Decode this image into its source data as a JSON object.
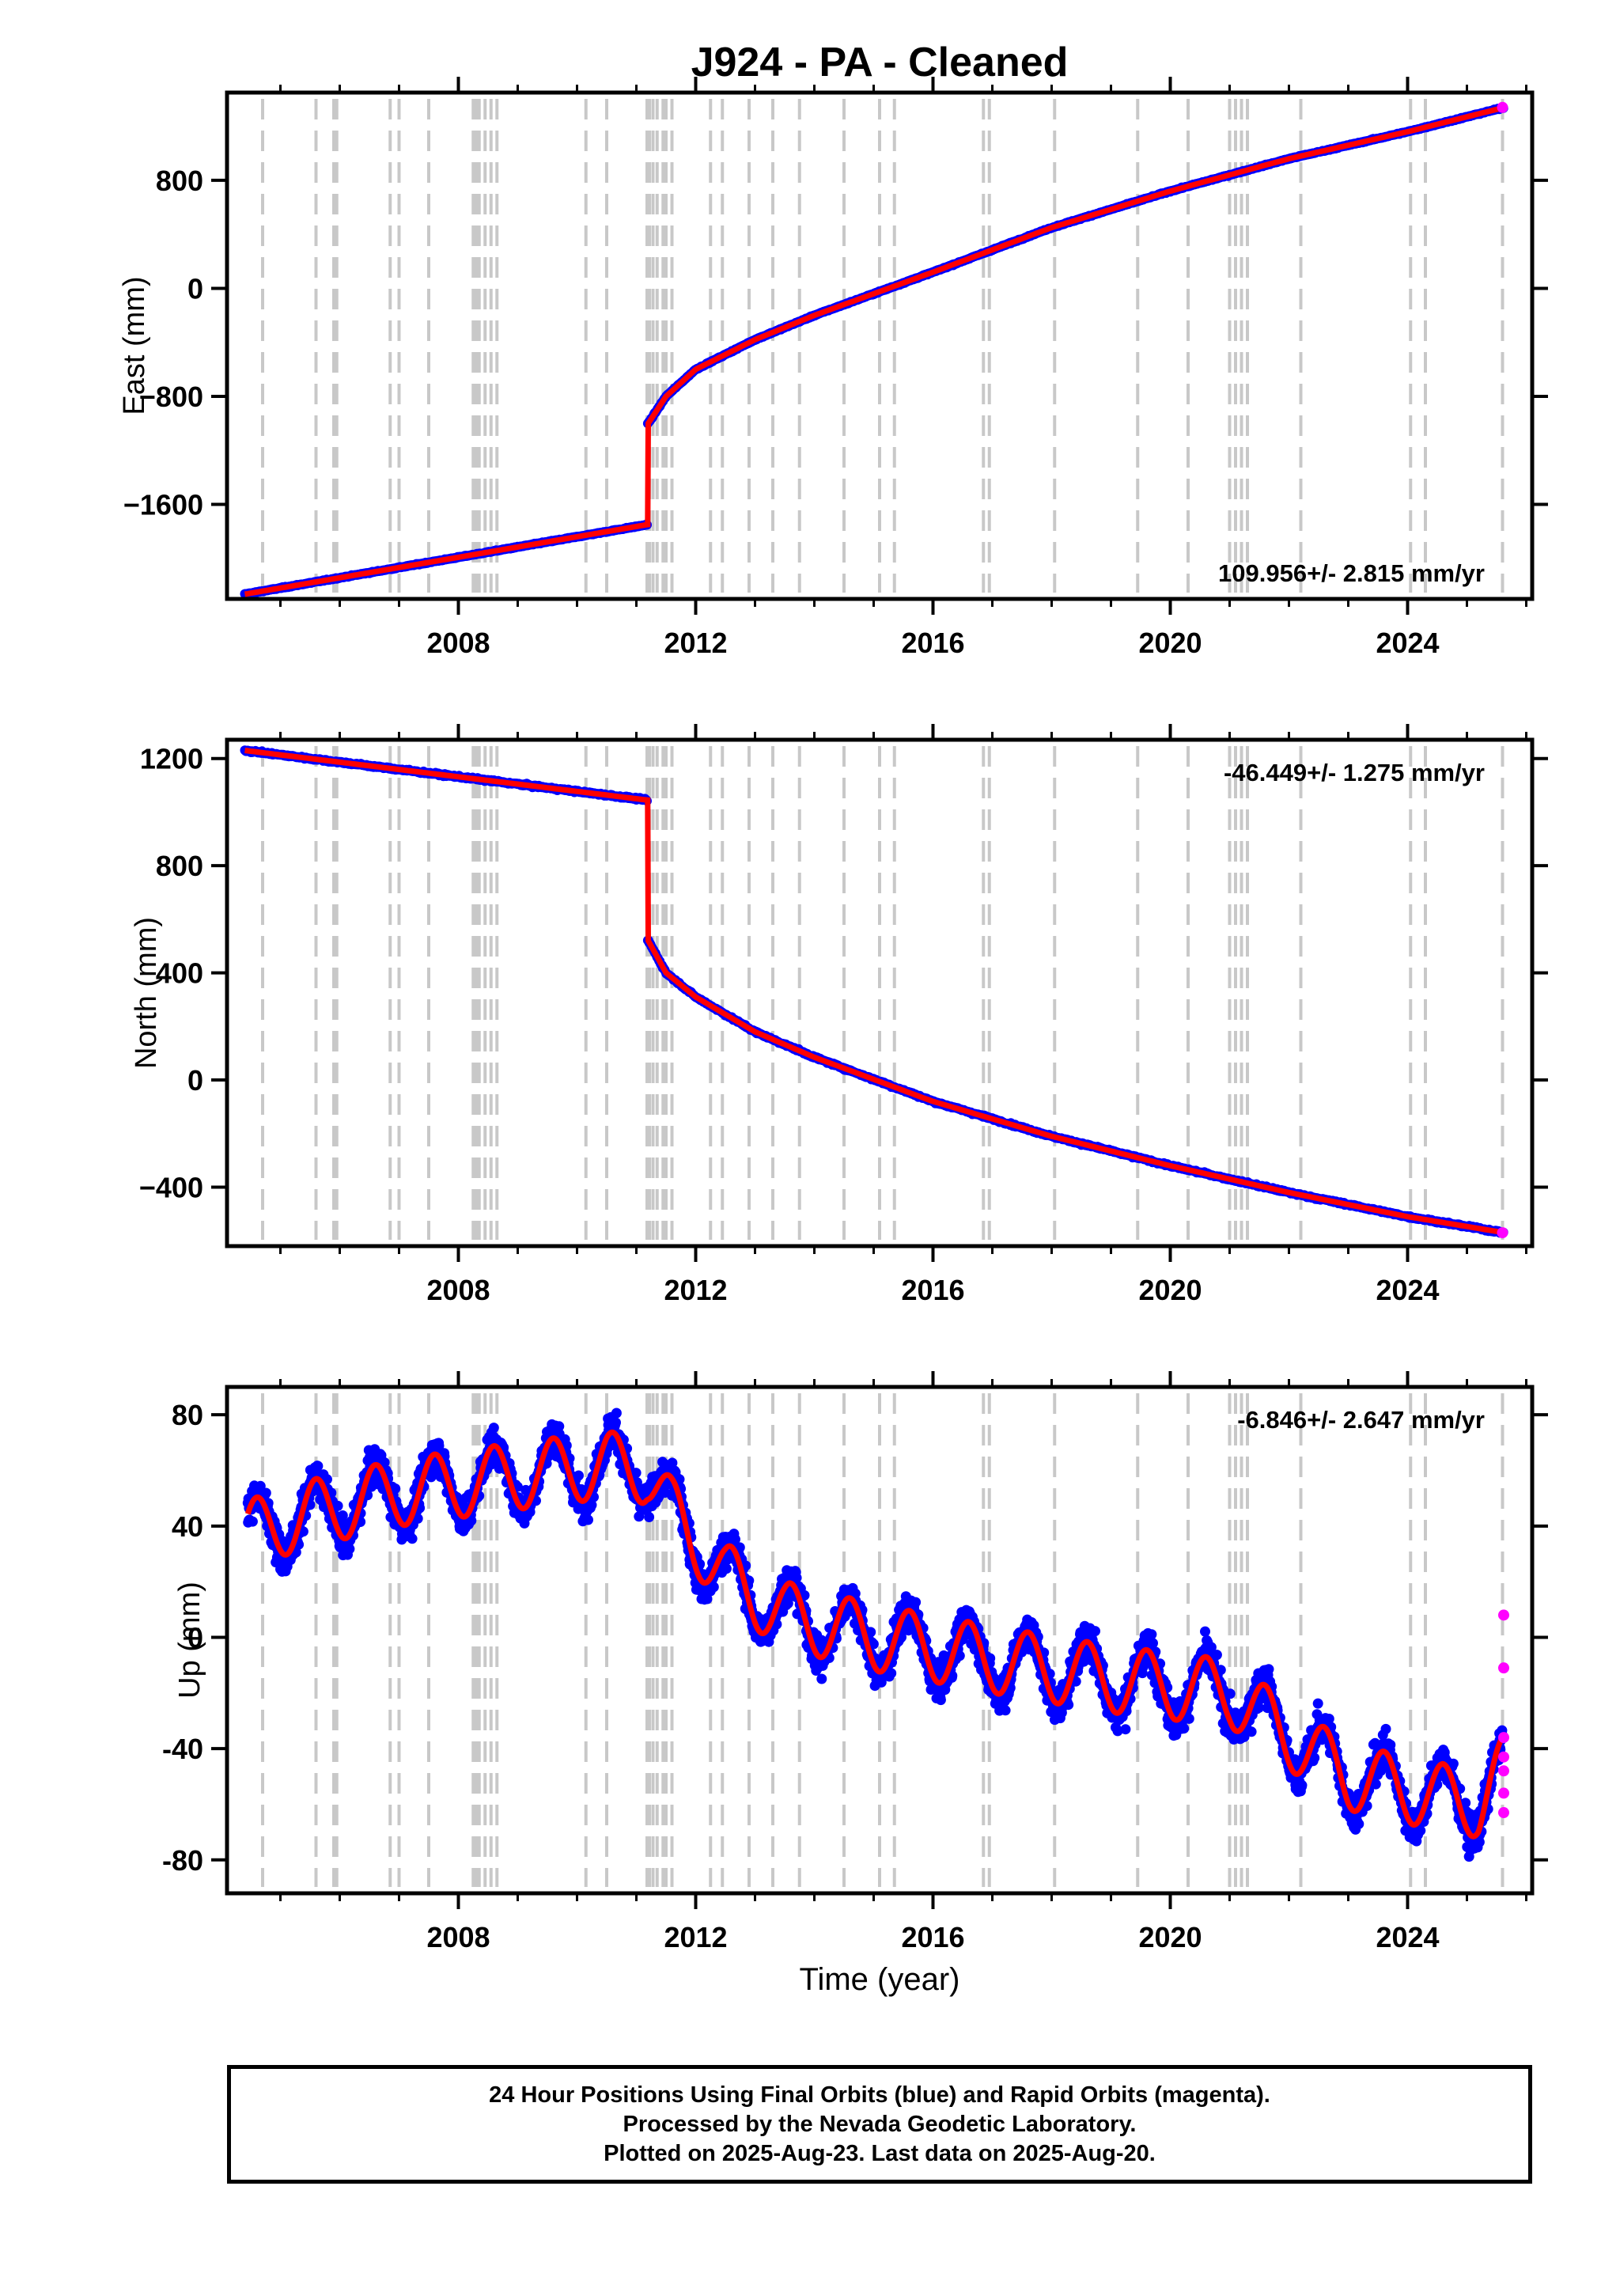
{
  "title": "J924  - PA - Cleaned",
  "xlabel": "Time (year)",
  "caption": {
    "line1": "24 Hour Positions Using Final Orbits (blue) and Rapid Orbits (magenta).",
    "line2": "Processed by the Nevada Geodetic Laboratory.",
    "line3": "Plotted on 2025-Aug-23. Last data on 2025-Aug-20."
  },
  "colors": {
    "final_orbits": "#0000ff",
    "rapid_orbits": "#ff00ff",
    "model_fit": "#ff0000",
    "event_lines": "#c8c8c8"
  },
  "chart_data": [
    {
      "type": "scatter",
      "panel": "east",
      "ylabel": "East (mm)",
      "rate_label": "109.956+/- 2.815 mm/yr",
      "xlim": [
        2004.1,
        2026.1
      ],
      "ylim": [
        -2300,
        1450
      ],
      "xticks": [
        2008,
        2012,
        2016,
        2020,
        2024
      ],
      "yticks": [
        -1600,
        -800,
        0,
        800
      ],
      "ytick_labels": [
        "−1600",
        "−800",
        "0",
        "800"
      ],
      "grid": false,
      "series": [
        {
          "kind": "segment",
          "x": [
            2004.4,
            2011.19
          ],
          "y": [
            -2265,
            -1750
          ]
        },
        {
          "kind": "postseismic",
          "x_start": 2011.19,
          "x_end": 2025.63,
          "y_jump_to": -1000,
          "y_end": 1340
        }
      ],
      "key_points": [
        {
          "x": 2004.4,
          "y": -2265
        },
        {
          "x": 2011.18,
          "y": -1750
        },
        {
          "x": 2011.2,
          "y": -1000
        },
        {
          "x": 2011.5,
          "y": -800
        },
        {
          "x": 2012.0,
          "y": -600
        },
        {
          "x": 2013.0,
          "y": -380
        },
        {
          "x": 2014.0,
          "y": -200
        },
        {
          "x": 2016.0,
          "y": 120
        },
        {
          "x": 2018.0,
          "y": 450
        },
        {
          "x": 2020.0,
          "y": 720
        },
        {
          "x": 2022.0,
          "y": 960
        },
        {
          "x": 2024.0,
          "y": 1160
        },
        {
          "x": 2025.63,
          "y": 1340
        }
      ],
      "rapid_points": [
        {
          "x": 2025.6,
          "y": 1340
        }
      ]
    },
    {
      "type": "scatter",
      "panel": "north",
      "ylabel": "North (mm)",
      "rate_label": "-46.449+/- 1.275 mm/yr",
      "xlim": [
        2004.1,
        2026.1
      ],
      "ylim": [
        -620,
        1270
      ],
      "xticks": [
        2008,
        2012,
        2016,
        2020,
        2024
      ],
      "yticks": [
        -400,
        0,
        400,
        800,
        1200
      ],
      "ytick_labels": [
        "−400",
        "0",
        "400",
        "800",
        "1200"
      ],
      "grid": false,
      "key_points": [
        {
          "x": 2004.4,
          "y": 1230
        },
        {
          "x": 2011.18,
          "y": 1045
        },
        {
          "x": 2011.2,
          "y": 520
        },
        {
          "x": 2011.5,
          "y": 400
        },
        {
          "x": 2012.0,
          "y": 310
        },
        {
          "x": 2013.0,
          "y": 180
        },
        {
          "x": 2014.0,
          "y": 85
        },
        {
          "x": 2016.0,
          "y": -80
        },
        {
          "x": 2018.0,
          "y": -210
        },
        {
          "x": 2020.0,
          "y": -320
        },
        {
          "x": 2022.0,
          "y": -420
        },
        {
          "x": 2024.0,
          "y": -510
        },
        {
          "x": 2025.63,
          "y": -570
        }
      ],
      "rapid_points": [
        {
          "x": 2025.6,
          "y": -570
        }
      ]
    },
    {
      "type": "scatter",
      "panel": "up",
      "ylabel": "Up (mm)",
      "rate_label": "-6.846+/- 2.647 mm/yr",
      "xlim": [
        2004.1,
        2026.1
      ],
      "ylim": [
        -92,
        90
      ],
      "xticks": [
        2008,
        2012,
        2016,
        2020,
        2024
      ],
      "yticks": [
        -80,
        -40,
        0,
        40,
        80
      ],
      "ytick_labels": [
        "-80",
        "-40",
        "0",
        "40",
        "80"
      ],
      "grid": false,
      "trend_points": [
        {
          "x": 2004.4,
          "y": 37
        },
        {
          "x": 2005.6,
          "y": 45
        },
        {
          "x": 2007.0,
          "y": 52
        },
        {
          "x": 2009.0,
          "y": 58
        },
        {
          "x": 2010.5,
          "y": 62
        },
        {
          "x": 2011.18,
          "y": 60
        },
        {
          "x": 2011.6,
          "y": 45
        },
        {
          "x": 2012.5,
          "y": 22
        },
        {
          "x": 2013.5,
          "y": 8
        },
        {
          "x": 2015.0,
          "y": 0
        },
        {
          "x": 2017.0,
          "y": -8
        },
        {
          "x": 2019.0,
          "y": -15
        },
        {
          "x": 2021.0,
          "y": -20
        },
        {
          "x": 2022.3,
          "y": -40
        },
        {
          "x": 2023.0,
          "y": -50
        },
        {
          "x": 2024.0,
          "y": -55
        },
        {
          "x": 2025.2,
          "y": -60
        },
        {
          "x": 2025.6,
          "y": -48
        }
      ],
      "seasonal_amplitude": 12,
      "scatter_spread": 14,
      "rapid_points": [
        {
          "x": 2025.62,
          "y": 8
        },
        {
          "x": 2025.62,
          "y": -11
        },
        {
          "x": 2025.62,
          "y": -36
        },
        {
          "x": 2025.62,
          "y": -43
        },
        {
          "x": 2025.62,
          "y": -48
        },
        {
          "x": 2025.62,
          "y": -56
        },
        {
          "x": 2025.62,
          "y": -63
        }
      ]
    }
  ],
  "event_lines": [
    2004.7,
    2005.6,
    2005.9,
    2005.95,
    2006.85,
    2007.0,
    2007.5,
    2008.25,
    2008.3,
    2008.35,
    2008.45,
    2008.55,
    2008.65,
    2010.15,
    2010.5,
    2011.18,
    2011.22,
    2011.28,
    2011.35,
    2011.45,
    2011.5,
    2011.6,
    2012.25,
    2012.45,
    2012.9,
    2013.3,
    2013.75,
    2014.5,
    2015.1,
    2015.35,
    2016.85,
    2016.95,
    2018.05,
    2019.45,
    2020.3,
    2021.0,
    2021.1,
    2021.2,
    2021.3,
    2022.2,
    2024.05,
    2024.3,
    2025.6
  ]
}
